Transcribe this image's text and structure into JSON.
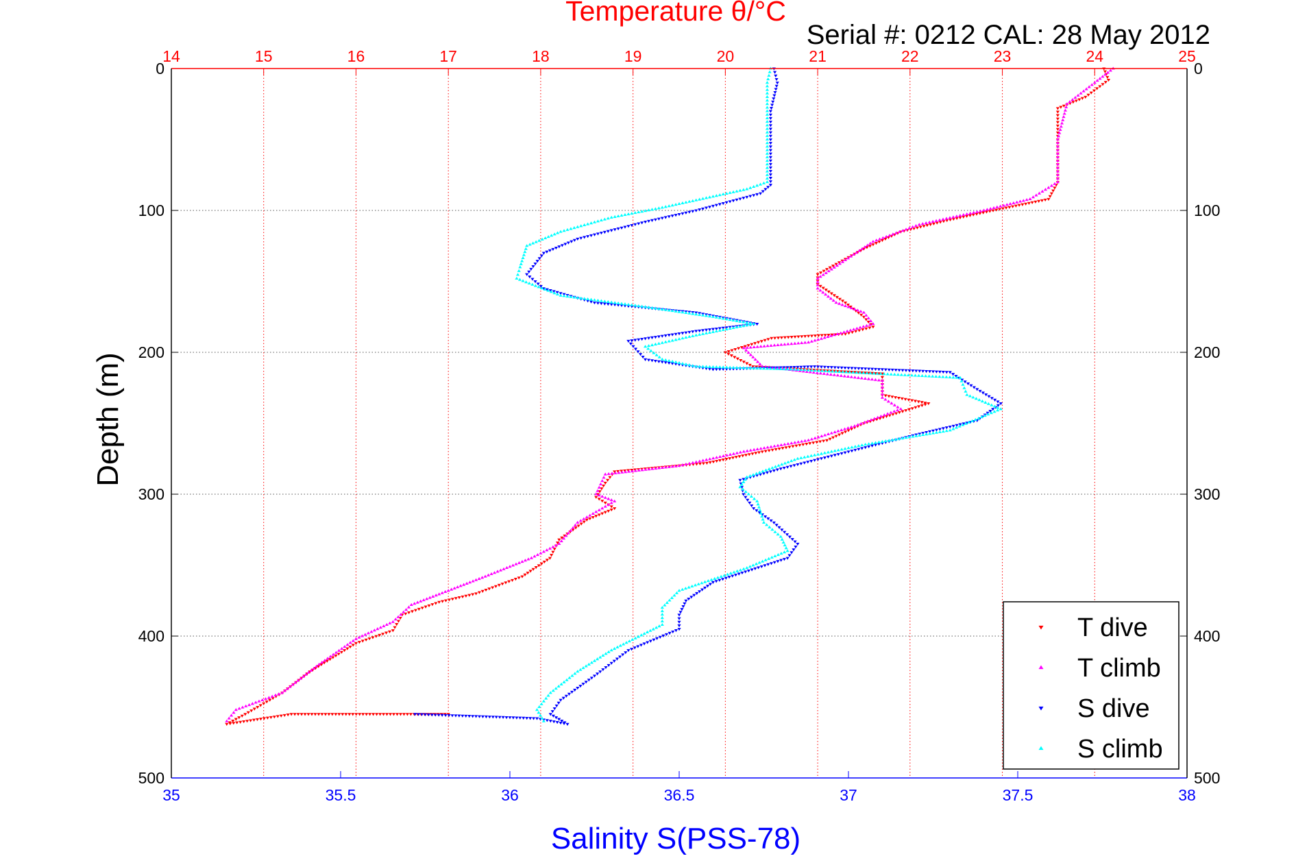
{
  "chart_data": {
    "type": "scatter",
    "title": "Temperature θ/°C",
    "subtitle": "Serial #: 0212  CAL: 28 May 2012",
    "ylabel": "Depth (m)",
    "xlabel": "Salinity S(PSS-78)",
    "ylim": [
      500,
      0
    ],
    "yticks": [
      0,
      100,
      200,
      300,
      400,
      500
    ],
    "x_bottom": {
      "label": "Salinity S(PSS-78)",
      "range": [
        35,
        38
      ],
      "ticks": [
        35,
        35.5,
        36,
        36.5,
        37,
        37.5,
        38
      ],
      "tick_labels": [
        "35",
        "35.5",
        "36",
        "36.5",
        "37",
        "37.5",
        "38"
      ],
      "color": "#0000ff"
    },
    "x_top": {
      "label": "Temperature θ/°C",
      "range": [
        14,
        25
      ],
      "ticks": [
        14,
        15,
        16,
        17,
        18,
        19,
        20,
        21,
        22,
        23,
        24,
        25
      ],
      "tick_labels": [
        "14",
        "15",
        "16",
        "17",
        "18",
        "19",
        "20",
        "21",
        "22",
        "23",
        "24",
        "25"
      ],
      "color": "#ff0000"
    },
    "grid": true,
    "legend_position": "bottom-right",
    "series": [
      {
        "name": "T dive",
        "axis": "top",
        "color": "#ff0000",
        "marker": "triangle-down",
        "points": [
          [
            24.1,
            0
          ],
          [
            24.15,
            8
          ],
          [
            23.9,
            20
          ],
          [
            23.6,
            28
          ],
          [
            23.6,
            50
          ],
          [
            23.6,
            80
          ],
          [
            23.5,
            92
          ],
          [
            22.9,
            100
          ],
          [
            22.4,
            107
          ],
          [
            21.9,
            115
          ],
          [
            21.5,
            127
          ],
          [
            21.0,
            145
          ],
          [
            21.0,
            152
          ],
          [
            21.3,
            165
          ],
          [
            21.5,
            175
          ],
          [
            21.6,
            182
          ],
          [
            21.3,
            187
          ],
          [
            20.5,
            190
          ],
          [
            20.0,
            200
          ],
          [
            20.3,
            210
          ],
          [
            21.7,
            215
          ],
          [
            21.7,
            230
          ],
          [
            22.2,
            236
          ],
          [
            21.5,
            250
          ],
          [
            21.1,
            262
          ],
          [
            20.4,
            270
          ],
          [
            19.8,
            278
          ],
          [
            18.8,
            284
          ],
          [
            18.7,
            292
          ],
          [
            18.6,
            302
          ],
          [
            18.8,
            310
          ],
          [
            18.5,
            318
          ],
          [
            18.2,
            332
          ],
          [
            18.1,
            345
          ],
          [
            17.8,
            358
          ],
          [
            17.3,
            370
          ],
          [
            16.9,
            376
          ],
          [
            16.5,
            385
          ],
          [
            16.4,
            396
          ],
          [
            16.0,
            405
          ],
          [
            15.5,
            425
          ],
          [
            15.2,
            440
          ],
          [
            14.8,
            455
          ],
          [
            14.6,
            462
          ],
          [
            15.3,
            455
          ],
          [
            17.0,
            455
          ]
        ]
      },
      {
        "name": "T climb",
        "axis": "top",
        "color": "#ff00ff",
        "marker": "triangle-up",
        "points": [
          [
            24.2,
            0
          ],
          [
            24.0,
            10
          ],
          [
            23.7,
            25
          ],
          [
            23.6,
            50
          ],
          [
            23.6,
            80
          ],
          [
            23.3,
            92
          ],
          [
            22.8,
            100
          ],
          [
            22.1,
            110
          ],
          [
            21.6,
            122
          ],
          [
            21.3,
            135
          ],
          [
            21.0,
            148
          ],
          [
            21.0,
            155
          ],
          [
            21.2,
            165
          ],
          [
            21.5,
            172
          ],
          [
            21.6,
            180
          ],
          [
            20.9,
            193
          ],
          [
            20.2,
            197
          ],
          [
            20.4,
            210
          ],
          [
            21.7,
            220
          ],
          [
            21.7,
            232
          ],
          [
            21.9,
            240
          ],
          [
            21.4,
            252
          ],
          [
            20.9,
            262
          ],
          [
            20.2,
            270
          ],
          [
            19.5,
            280
          ],
          [
            18.7,
            286
          ],
          [
            18.6,
            300
          ],
          [
            18.8,
            305
          ],
          [
            18.4,
            320
          ],
          [
            18.2,
            335
          ],
          [
            17.9,
            345
          ],
          [
            17.4,
            358
          ],
          [
            17.0,
            368
          ],
          [
            16.6,
            378
          ],
          [
            16.4,
            390
          ],
          [
            16.0,
            402
          ],
          [
            15.6,
            420
          ],
          [
            15.2,
            440
          ],
          [
            14.7,
            452
          ],
          [
            14.6,
            460
          ]
        ]
      },
      {
        "name": "S dive",
        "axis": "bottom",
        "color": "#0000ff",
        "marker": "triangle-down",
        "points": [
          [
            36.78,
            0
          ],
          [
            36.79,
            10
          ],
          [
            36.77,
            30
          ],
          [
            36.77,
            60
          ],
          [
            36.77,
            82
          ],
          [
            36.74,
            88
          ],
          [
            36.55,
            100
          ],
          [
            36.4,
            108
          ],
          [
            36.2,
            120
          ],
          [
            36.1,
            130
          ],
          [
            36.05,
            145
          ],
          [
            36.1,
            155
          ],
          [
            36.25,
            165
          ],
          [
            36.55,
            172
          ],
          [
            36.73,
            180
          ],
          [
            36.55,
            185
          ],
          [
            36.35,
            192
          ],
          [
            36.4,
            205
          ],
          [
            36.6,
            212
          ],
          [
            36.9,
            210
          ],
          [
            37.3,
            214
          ],
          [
            37.38,
            226
          ],
          [
            37.45,
            236
          ],
          [
            37.38,
            248
          ],
          [
            37.2,
            258
          ],
          [
            37.0,
            270
          ],
          [
            36.8,
            282
          ],
          [
            36.68,
            290
          ],
          [
            36.69,
            300
          ],
          [
            36.72,
            310
          ],
          [
            36.78,
            320
          ],
          [
            36.85,
            335
          ],
          [
            36.82,
            345
          ],
          [
            36.6,
            362
          ],
          [
            36.52,
            375
          ],
          [
            36.5,
            385
          ],
          [
            36.5,
            395
          ],
          [
            36.35,
            410
          ],
          [
            36.25,
            428
          ],
          [
            36.15,
            445
          ],
          [
            36.12,
            455
          ],
          [
            36.17,
            462
          ],
          [
            36.08,
            458
          ],
          [
            35.72,
            455
          ]
        ]
      },
      {
        "name": "S climb",
        "axis": "bottom",
        "color": "#00ffff",
        "marker": "triangle-up",
        "points": [
          [
            36.77,
            0
          ],
          [
            36.76,
            10
          ],
          [
            36.76,
            30
          ],
          [
            36.76,
            60
          ],
          [
            36.76,
            80
          ],
          [
            36.7,
            85
          ],
          [
            36.45,
            98
          ],
          [
            36.3,
            105
          ],
          [
            36.15,
            115
          ],
          [
            36.05,
            125
          ],
          [
            36.03,
            140
          ],
          [
            36.02,
            148
          ],
          [
            36.15,
            160
          ],
          [
            36.4,
            168
          ],
          [
            36.6,
            175
          ],
          [
            36.72,
            180
          ],
          [
            36.55,
            188
          ],
          [
            36.4,
            196
          ],
          [
            36.45,
            205
          ],
          [
            36.55,
            210
          ],
          [
            36.83,
            212
          ],
          [
            37.33,
            218
          ],
          [
            37.35,
            230
          ],
          [
            37.45,
            240
          ],
          [
            37.3,
            255
          ],
          [
            37.05,
            265
          ],
          [
            36.85,
            275
          ],
          [
            36.7,
            288
          ],
          [
            36.68,
            295
          ],
          [
            36.73,
            305
          ],
          [
            36.75,
            320
          ],
          [
            36.8,
            330
          ],
          [
            36.82,
            340
          ],
          [
            36.7,
            352
          ],
          [
            36.5,
            368
          ],
          [
            36.45,
            380
          ],
          [
            36.45,
            392
          ],
          [
            36.3,
            410
          ],
          [
            36.2,
            425
          ],
          [
            36.12,
            440
          ],
          [
            36.08,
            452
          ],
          [
            36.1,
            460
          ]
        ]
      }
    ]
  }
}
